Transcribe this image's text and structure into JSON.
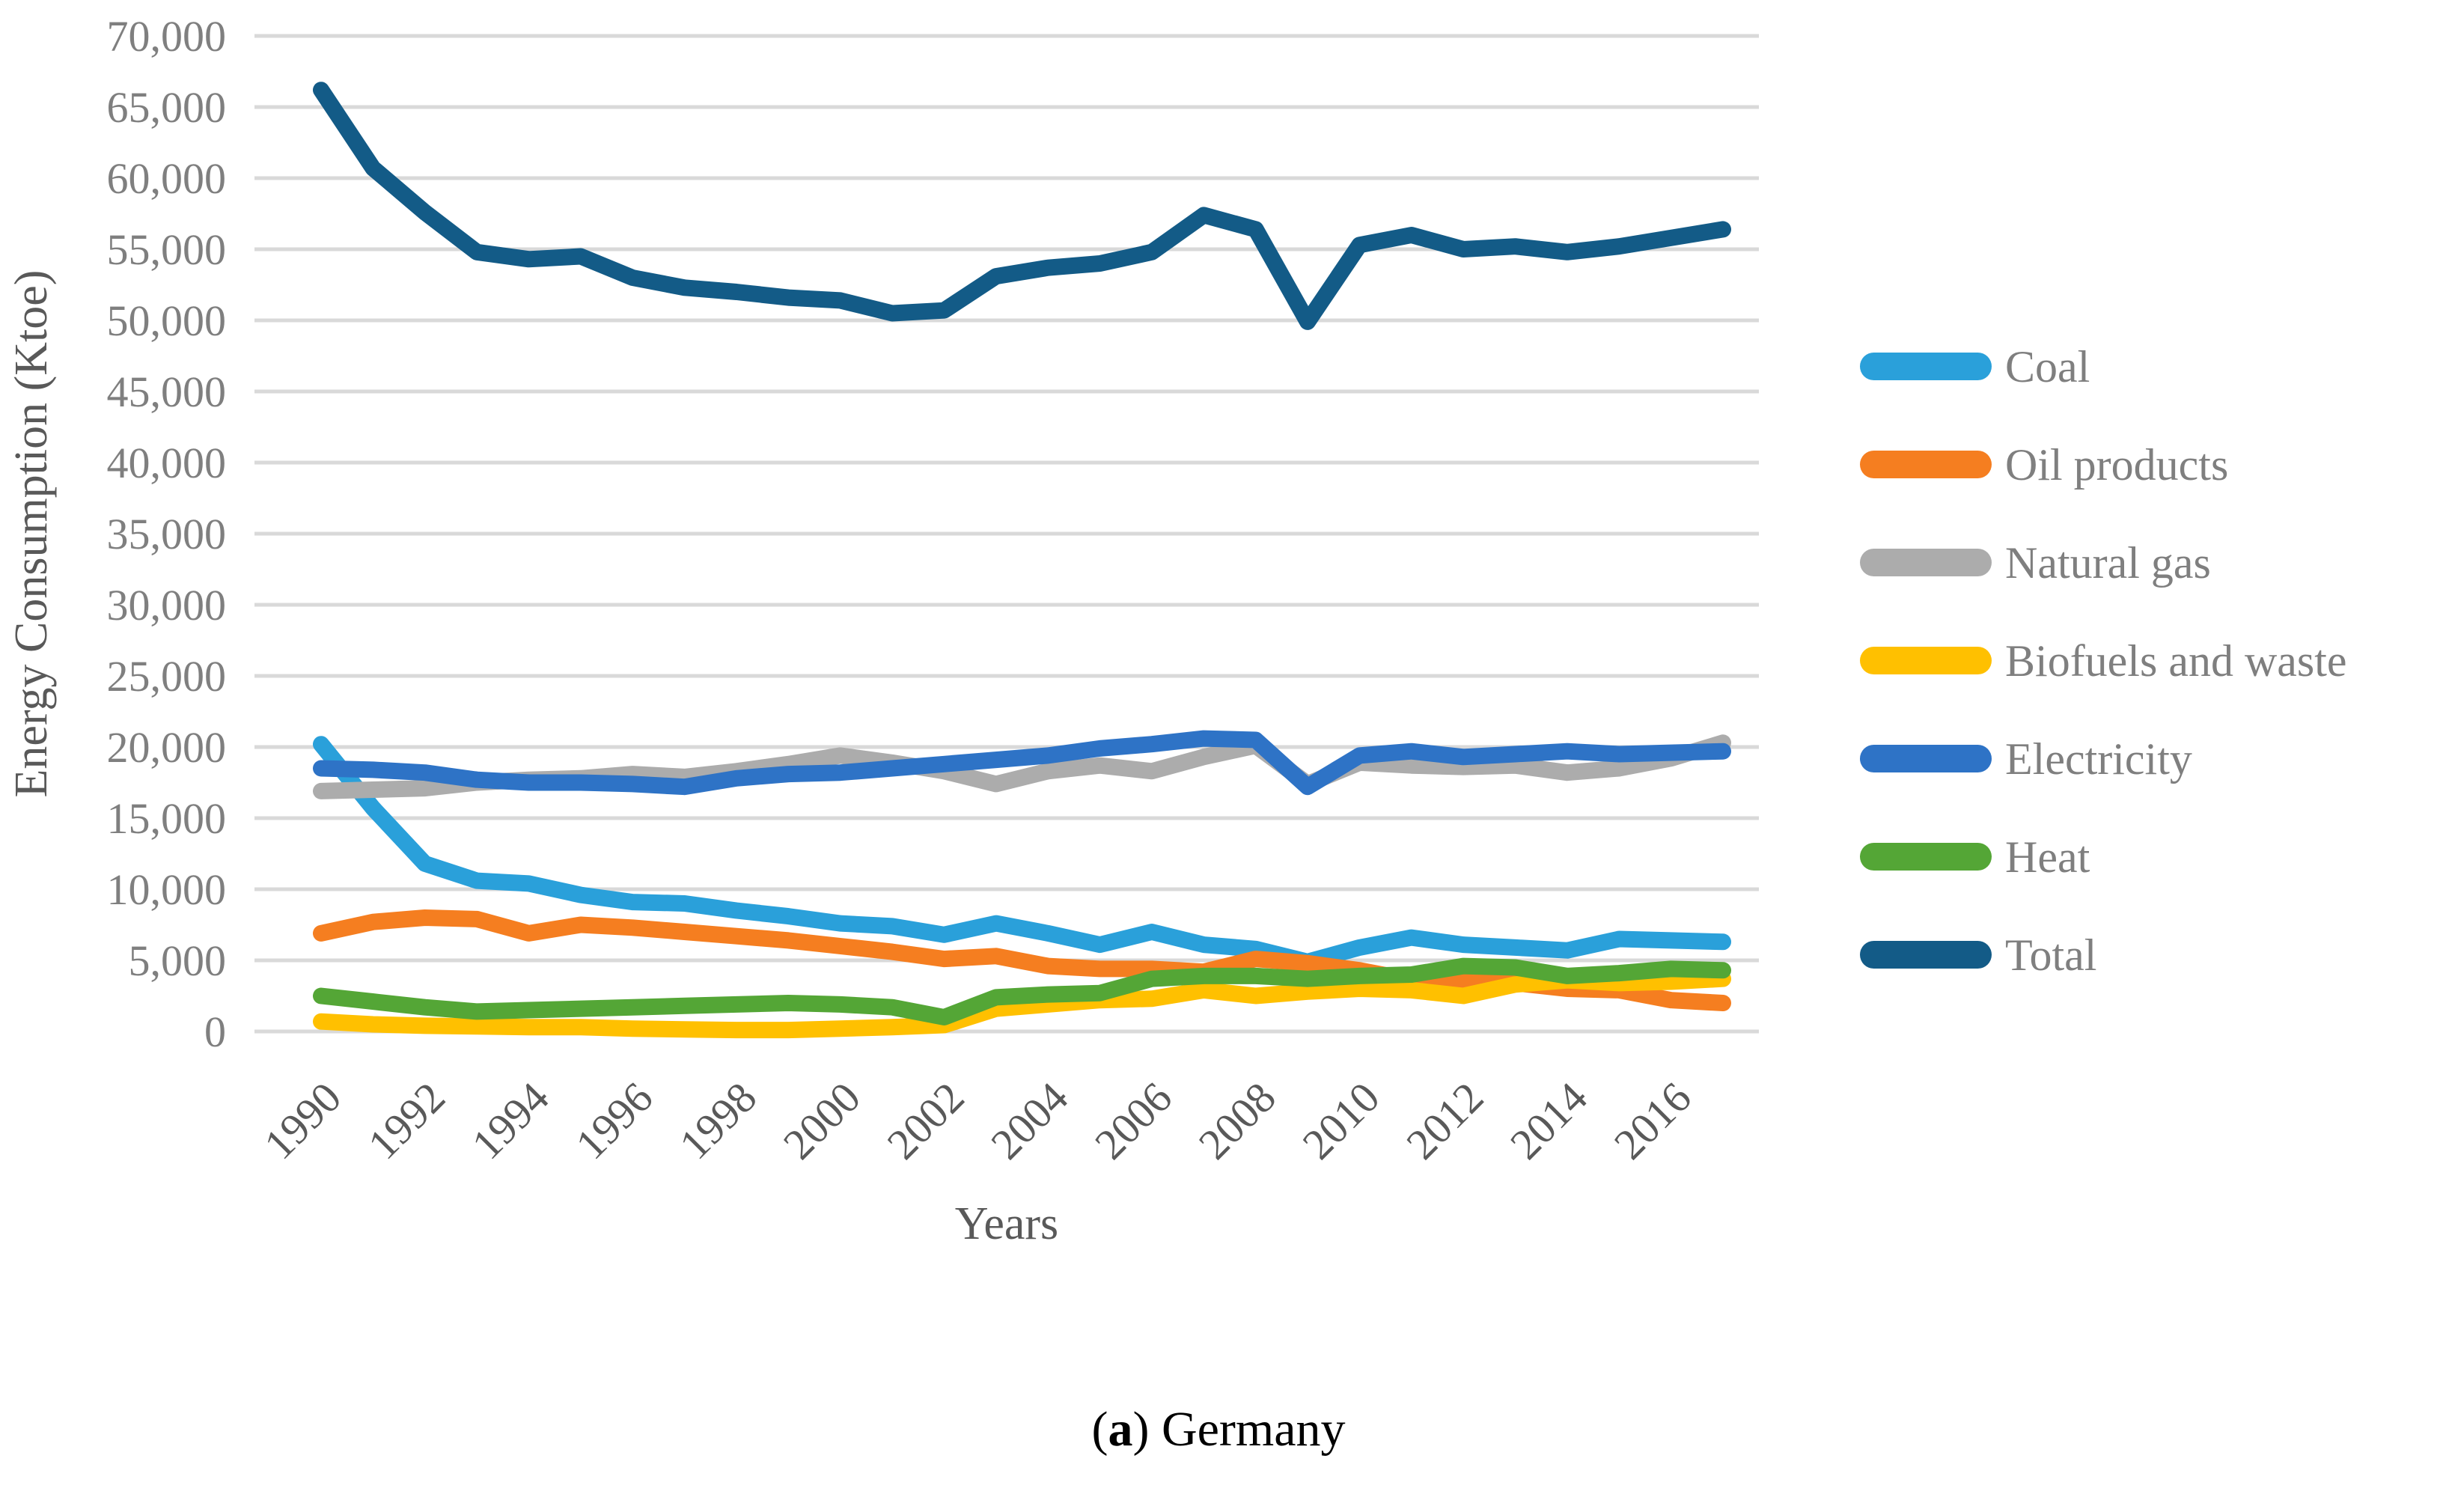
{
  "caption": {
    "open": "(",
    "letter": "a",
    "rest": ") Germany"
  },
  "chart_data": {
    "type": "line",
    "title": "",
    "xlabel": "Years",
    "ylabel": "Energy Consumption (Ktoe)",
    "ylim": [
      0,
      70000
    ],
    "grid": "horizontal",
    "gridline_color": "#d9d9d9",
    "legend_position": "right",
    "y_ticks": [
      0,
      5000,
      10000,
      15000,
      20000,
      25000,
      30000,
      35000,
      40000,
      45000,
      50000,
      55000,
      60000,
      65000,
      70000
    ],
    "x_tick_labels": [
      "1990",
      "1992",
      "1994",
      "1996",
      "1998",
      "2000",
      "2002",
      "2004",
      "2006",
      "2008",
      "2010",
      "2012",
      "2014",
      "2016"
    ],
    "years": [
      1990,
      1991,
      1992,
      1993,
      1994,
      1995,
      1996,
      1997,
      1998,
      1999,
      2000,
      2001,
      2002,
      2003,
      2004,
      2005,
      2006,
      2007,
      2008,
      2009,
      2010,
      2011,
      2012,
      2013,
      2014,
      2015,
      2016,
      2017
    ],
    "series": [
      {
        "name": "Coal",
        "color": "#2aa0da",
        "values": [
          20200,
          15700,
          11800,
          10600,
          10400,
          9600,
          9100,
          9000,
          8500,
          8100,
          7600,
          7400,
          6800,
          7600,
          6900,
          6100,
          7000,
          6100,
          5800,
          4900,
          5900,
          6600,
          6100,
          5900,
          5700,
          6500,
          6400,
          6300
        ]
      },
      {
        "name": "Oil products",
        "color": "#f57e20",
        "values": [
          6900,
          7700,
          8000,
          7900,
          6900,
          7500,
          7300,
          7000,
          6700,
          6400,
          6000,
          5600,
          5100,
          5300,
          4600,
          4400,
          4400,
          4200,
          5100,
          4800,
          4300,
          3600,
          3600,
          3400,
          3000,
          2900,
          2200,
          2000
        ]
      },
      {
        "name": "Natural gas",
        "color": "#acacac",
        "values": [
          16900,
          17000,
          17100,
          17500,
          17700,
          17800,
          18100,
          17900,
          18300,
          18800,
          19400,
          18900,
          18300,
          17400,
          18300,
          18700,
          18300,
          19300,
          20100,
          17400,
          18900,
          18700,
          18600,
          18700,
          18200,
          18500,
          19200,
          20300
        ]
      },
      {
        "name": "Biofuels and waste",
        "color": "#ffc000",
        "values": [
          700,
          500,
          400,
          350,
          300,
          300,
          200,
          150,
          100,
          100,
          200,
          300,
          450,
          1600,
          1900,
          2200,
          2300,
          2900,
          2500,
          2800,
          3000,
          2900,
          2500,
          3300,
          3600,
          3400,
          3500,
          3700
        ]
      },
      {
        "name": "Electricity",
        "color": "#2e73c6",
        "values": [
          18500,
          18400,
          18200,
          17700,
          17500,
          17500,
          17400,
          17200,
          17800,
          18100,
          18200,
          18500,
          18800,
          19100,
          19400,
          19900,
          20200,
          20600,
          20500,
          17200,
          19400,
          19700,
          19300,
          19500,
          19700,
          19500,
          19600,
          19700
        ]
      },
      {
        "name": "Heat",
        "color": "#54a636",
        "values": [
          2500,
          2100,
          1700,
          1400,
          1500,
          1600,
          1700,
          1800,
          1900,
          2000,
          1900,
          1700,
          1000,
          2400,
          2600,
          2700,
          3700,
          3900,
          3900,
          3700,
          3900,
          4000,
          4600,
          4500,
          3900,
          4100,
          4400,
          4300
        ]
      },
      {
        "name": "Total",
        "color": "#135b87",
        "values": [
          66200,
          60700,
          57600,
          54800,
          54300,
          54500,
          53000,
          52300,
          52000,
          51600,
          51400,
          50500,
          50700,
          53100,
          53700,
          54000,
          54800,
          57400,
          56400,
          49900,
          55300,
          56000,
          55000,
          55200,
          54800,
          55200,
          55800,
          56400
        ]
      }
    ]
  }
}
